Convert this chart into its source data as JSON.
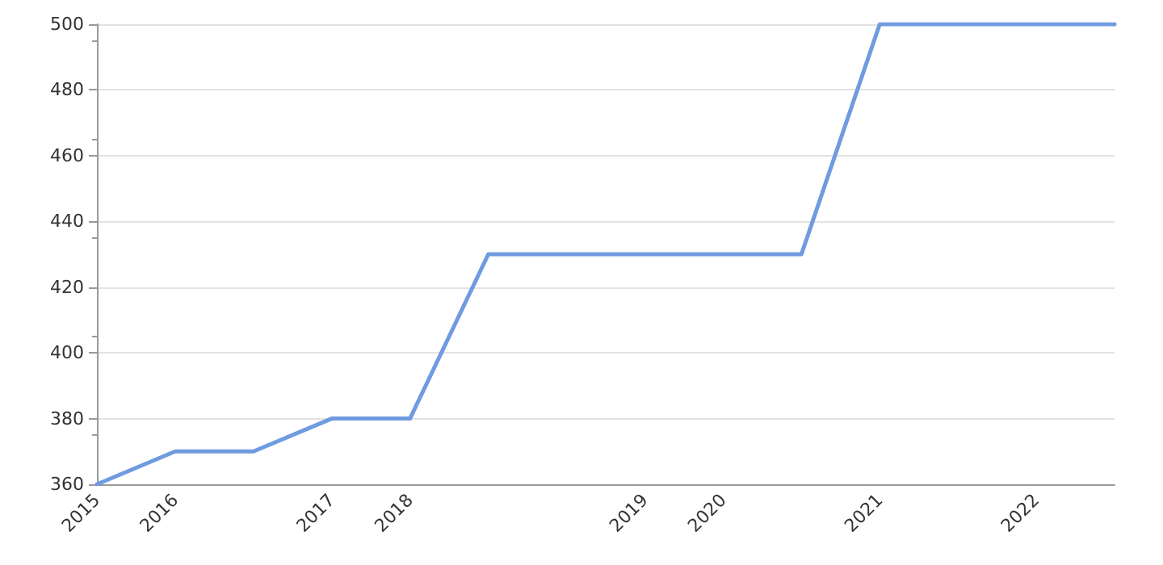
{
  "chart_data": {
    "type": "line",
    "categories": [
      "2015",
      "2016",
      null,
      "2017",
      "2018",
      null,
      null,
      "2019",
      "2020",
      null,
      "2021",
      null,
      "2022",
      null
    ],
    "series": [
      {
        "color": "#6f9be0",
        "values": [
          360,
          370,
          370,
          380,
          380,
          430,
          430,
          430,
          430,
          430,
          500,
          500,
          500,
          500
        ]
      }
    ],
    "ylim": [
      360,
      500
    ],
    "yticks": [
      360,
      380,
      400,
      420,
      440,
      460,
      480,
      500
    ],
    "grid": "y",
    "marker": "none",
    "line_style": "solid"
  }
}
